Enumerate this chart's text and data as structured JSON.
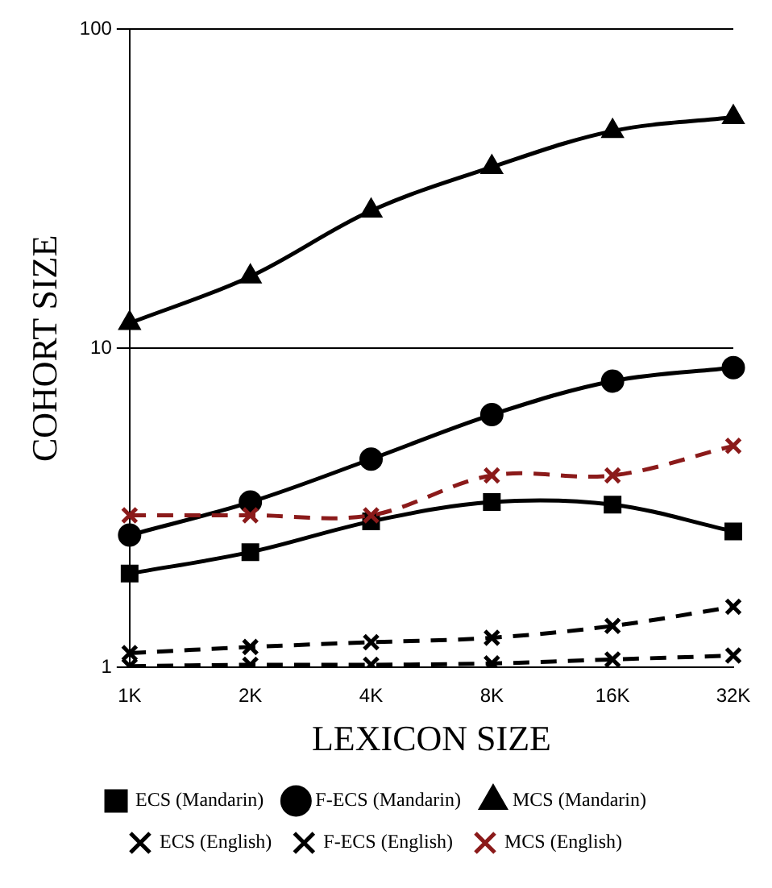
{
  "chart_data": {
    "type": "line",
    "xlabel": "LEXICON SIZE",
    "ylabel": "COHORT SIZE",
    "categories": [
      "1K",
      "2K",
      "4K",
      "8K",
      "16K",
      "32K"
    ],
    "log": "y",
    "ylim": [
      1,
      100
    ],
    "yticks": [
      1,
      10,
      100
    ],
    "grid": "y",
    "legend": "bottom",
    "series": [
      {
        "name": "ECS (Mandarin)",
        "color": "#000000",
        "marker": "square",
        "line_style": "solid",
        "values": [
          1.97,
          2.3,
          2.87,
          3.3,
          3.24,
          2.67
        ]
      },
      {
        "name": "F-ECS (Mandarin)",
        "color": "#000000",
        "marker": "circle",
        "line_style": "solid",
        "values": [
          2.6,
          3.3,
          4.5,
          6.2,
          7.9,
          8.7
        ]
      },
      {
        "name": "MCS (Mandarin)",
        "color": "#000000",
        "marker": "triangle",
        "line_style": "solid",
        "values": [
          12,
          16.8,
          27,
          37,
          48,
          53
        ]
      },
      {
        "name": "ECS (English)",
        "color": "#000000",
        "marker": "cross",
        "line_style": "dashed",
        "values": [
          1.01,
          1.02,
          1.02,
          1.03,
          1.06,
          1.09
        ]
      },
      {
        "name": "F-ECS (English)",
        "color": "#000000",
        "marker": "cross",
        "line_style": "dashed",
        "values": [
          1.11,
          1.16,
          1.2,
          1.24,
          1.35,
          1.55
        ]
      },
      {
        "name": "MCS (English)",
        "color": "#8b1a1a",
        "marker": "cross",
        "line_style": "dashed",
        "values": [
          3,
          3,
          3,
          4,
          4,
          4.95
        ]
      }
    ]
  }
}
